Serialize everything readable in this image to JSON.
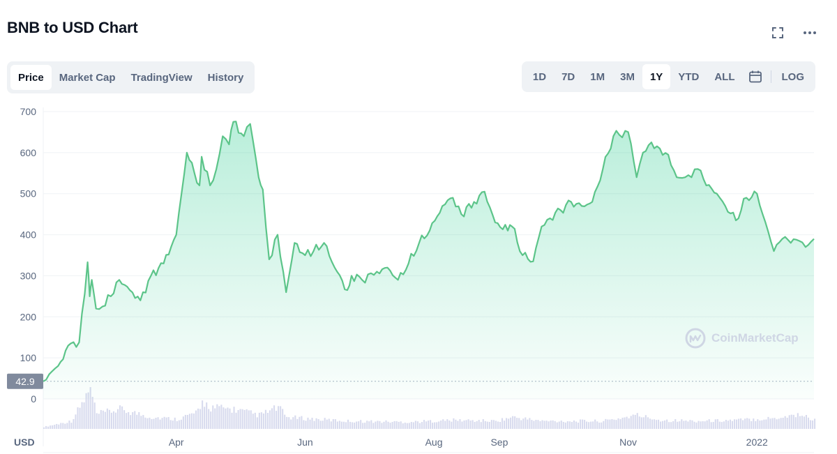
{
  "header": {
    "title": "BNB to USD Chart"
  },
  "icons": {
    "fullscreen": "fullscreen-icon",
    "more": "more-icon",
    "calendar": "calendar-icon",
    "logo": "coinmarketcap-logo-icon"
  },
  "tabs": [
    {
      "label": "Price",
      "active": true
    },
    {
      "label": "Market Cap",
      "active": false
    },
    {
      "label": "TradingView",
      "active": false
    },
    {
      "label": "History",
      "active": false
    }
  ],
  "ranges": [
    {
      "label": "1D",
      "active": false
    },
    {
      "label": "7D",
      "active": false
    },
    {
      "label": "1M",
      "active": false
    },
    {
      "label": "3M",
      "active": false
    },
    {
      "label": "1Y",
      "active": true
    },
    {
      "label": "YTD",
      "active": false
    },
    {
      "label": "ALL",
      "active": false
    }
  ],
  "log_label": "LOG",
  "watermark": "CoinMarketCap",
  "colors": {
    "line": "#5cc489",
    "fill": "#16c784",
    "volume": "#d8dbee",
    "accent_text": "#58667e"
  },
  "chart_data": {
    "type": "area",
    "y_unit_label": "USD",
    "ylim": [
      0,
      700
    ],
    "y_ticks": [
      0,
      100,
      200,
      300,
      400,
      500,
      600,
      700
    ],
    "x_range": [
      "2021-01-28",
      "2022-01-28"
    ],
    "x_tick_labels": [
      {
        "label": "Apr",
        "date": "2021-04-01"
      },
      {
        "label": "Jun",
        "date": "2021-06-01"
      },
      {
        "label": "Aug",
        "date": "2021-08-01"
      },
      {
        "label": "Sep",
        "date": "2021-09-01"
      },
      {
        "label": "Nov",
        "date": "2021-11-01"
      },
      {
        "label": "2022",
        "date": "2022-01-01"
      }
    ],
    "start_price_label": "42.9",
    "grid": true,
    "series": [
      {
        "x": [
          "2021-01-28",
          "2021-02-04",
          "2021-02-10",
          "2021-02-14",
          "2021-02-18",
          "2021-02-19",
          "2021-02-20",
          "2021-02-22",
          "2021-02-25",
          "2021-03-01",
          "2021-03-05",
          "2021-03-10",
          "2021-03-15",
          "2021-03-20",
          "2021-03-26",
          "2021-04-01",
          "2021-04-06",
          "2021-04-12",
          "2021-04-13",
          "2021-04-17",
          "2021-04-20",
          "2021-04-23",
          "2021-04-26",
          "2021-04-28",
          "2021-05-03",
          "2021-05-06",
          "2021-05-10",
          "2021-05-12",
          "2021-05-15",
          "2021-05-19",
          "2021-05-23",
          "2021-05-27",
          "2021-06-01",
          "2021-06-05",
          "2021-06-10",
          "2021-06-15",
          "2021-06-21",
          "2021-06-23",
          "2021-06-28",
          "2021-07-05",
          "2021-07-10",
          "2021-07-15",
          "2021-07-20",
          "2021-07-25",
          "2021-07-30",
          "2021-08-05",
          "2021-08-10",
          "2021-08-14",
          "2021-08-20",
          "2021-08-25",
          "2021-08-30",
          "2021-09-05",
          "2021-09-07",
          "2021-09-12",
          "2021-09-17",
          "2021-09-21",
          "2021-09-25",
          "2021-09-30",
          "2021-10-05",
          "2021-10-10",
          "2021-10-15",
          "2021-10-20",
          "2021-10-25",
          "2021-11-01",
          "2021-11-05",
          "2021-11-08",
          "2021-11-12",
          "2021-11-16",
          "2021-11-20",
          "2021-11-24",
          "2021-11-28",
          "2021-12-01",
          "2021-12-04",
          "2021-12-08",
          "2021-12-13",
          "2021-12-17",
          "2021-12-22",
          "2021-12-27",
          "2022-01-01",
          "2022-01-05",
          "2022-01-09",
          "2022-01-13",
          "2022-01-17",
          "2022-01-21",
          "2022-01-24",
          "2022-01-28"
        ],
        "y": [
          42.9,
          80,
          135,
          138,
          333,
          250,
          290,
          220,
          225,
          250,
          290,
          265,
          240,
          300,
          330,
          400,
          600,
          520,
          590,
          520,
          560,
          640,
          620,
          675,
          640,
          670,
          540,
          510,
          340,
          400,
          260,
          380,
          350,
          360,
          380,
          320,
          265,
          300,
          290,
          310,
          320,
          290,
          330,
          380,
          410,
          470,
          490,
          450,
          480,
          505,
          430,
          410,
          420,
          350,
          335,
          420,
          440,
          460,
          480,
          470,
          480,
          560,
          640,
          650,
          540,
          600,
          625,
          610,
          595,
          540,
          540,
          540,
          560,
          520,
          500,
          470,
          435,
          490,
          500,
          430,
          360,
          390,
          380,
          385,
          370,
          390
        ]
      }
    ],
    "volume": {
      "x": [
        "2021-01-28",
        "2021-02-10",
        "2021-02-19",
        "2021-02-22",
        "2021-03-05",
        "2021-03-20",
        "2021-04-01",
        "2021-04-12",
        "2021-04-13",
        "2021-04-17",
        "2021-04-28",
        "2021-05-10",
        "2021-05-19",
        "2021-05-23",
        "2021-06-05",
        "2021-06-21",
        "2021-07-20",
        "2021-08-10",
        "2021-08-30",
        "2021-09-07",
        "2021-09-21",
        "2021-10-20",
        "2021-11-05",
        "2021-11-16",
        "2021-12-04",
        "2021-12-22",
        "2022-01-09",
        "2022-01-21",
        "2022-01-28"
      ],
      "values": [
        2,
        8,
        40,
        15,
        20,
        12,
        10,
        18,
        28,
        22,
        20,
        14,
        22,
        12,
        10,
        8,
        7,
        9,
        8,
        12,
        8,
        8,
        14,
        9,
        8,
        9,
        11,
        15,
        9
      ]
    }
  }
}
